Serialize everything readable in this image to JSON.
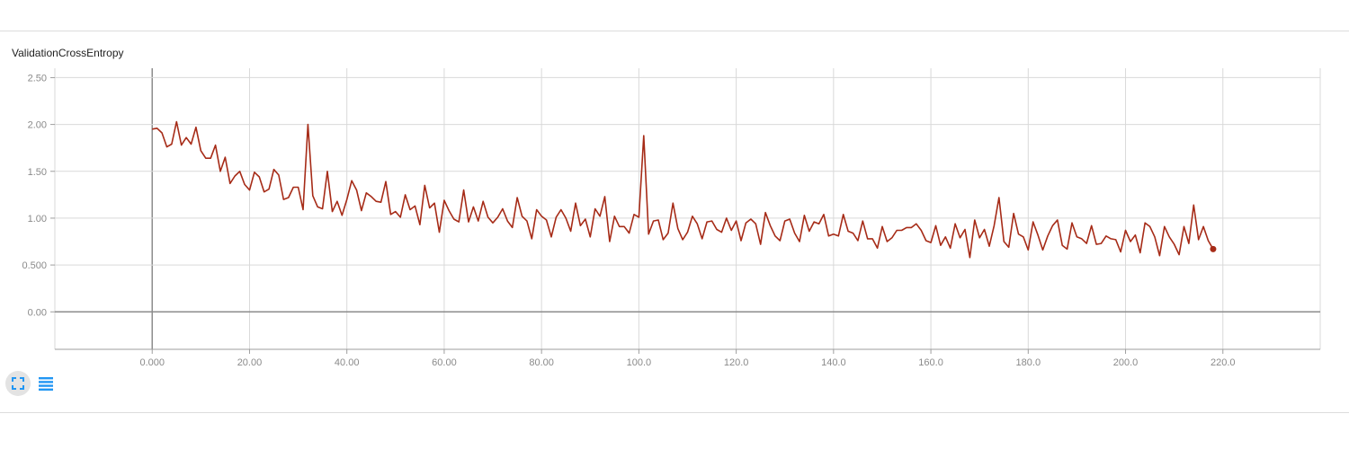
{
  "chart": {
    "title": "ValidationCrossEntropy"
  },
  "controls": {
    "expand_icon": "fullscreen-icon",
    "data_icon": "list-lines-icon",
    "accent": "#2196f3"
  },
  "colors": {
    "series": "#a62b17",
    "grid": "#d9d9d9",
    "axis": "#9e9e9e",
    "zero_line": "#8c8c8c"
  },
  "chart_data": {
    "type": "line",
    "title": "ValidationCrossEntropy",
    "xlabel": "",
    "ylabel": "",
    "xlim": [
      -20,
      240
    ],
    "ylim": [
      -0.4,
      2.6
    ],
    "x_ticks": [
      0,
      20,
      40,
      60,
      80,
      100,
      120,
      140,
      160,
      180,
      200,
      220
    ],
    "x_tick_labels": [
      "0.000",
      "20.00",
      "40.00",
      "60.00",
      "80.00",
      "100.0",
      "120.0",
      "140.0",
      "160.0",
      "180.0",
      "200.0",
      "220.0"
    ],
    "y_ticks": [
      0,
      0.5,
      1.0,
      1.5,
      2.0,
      2.5
    ],
    "y_tick_labels": [
      "0.00",
      "0.500",
      "1.00",
      "1.50",
      "2.00",
      "2.50"
    ],
    "grid": true,
    "series": [
      {
        "x": [
          0,
          1,
          2,
          3,
          4,
          5,
          6,
          7,
          8,
          9,
          10,
          11,
          12,
          13,
          14,
          15,
          16,
          17,
          18,
          19,
          20,
          21,
          22,
          23,
          24,
          25,
          26,
          27,
          28,
          29,
          30,
          31,
          32,
          33,
          34,
          35,
          36,
          37,
          38,
          39,
          40,
          41,
          42,
          43,
          44,
          45,
          46,
          47,
          48,
          49,
          50,
          51,
          52,
          53,
          54,
          55,
          56,
          57,
          58,
          59,
          60,
          61,
          62,
          63,
          64,
          65,
          66,
          67,
          68,
          69,
          70,
          71,
          72,
          73,
          74,
          75,
          76,
          77,
          78,
          79,
          80,
          81,
          82,
          83,
          84,
          85,
          86,
          87,
          88,
          89,
          90,
          91,
          92,
          93,
          94,
          95,
          96,
          97,
          98,
          99,
          100,
          101,
          102,
          103,
          104,
          105,
          106,
          107,
          108,
          109,
          110,
          111,
          112,
          113,
          114,
          115,
          116,
          117,
          118,
          119,
          120,
          121,
          122,
          123,
          124,
          125,
          126,
          127,
          128,
          129,
          130,
          131,
          132,
          133,
          134,
          135,
          136,
          137,
          138,
          139,
          140,
          141,
          142,
          143,
          144,
          145,
          146,
          147,
          148,
          149,
          150,
          151,
          152,
          153,
          154,
          155,
          156,
          157,
          158,
          159,
          160,
          161,
          162,
          163,
          164,
          165,
          166,
          167,
          168,
          169,
          170,
          171,
          172,
          173,
          174,
          175,
          176,
          177,
          178,
          179,
          180,
          181,
          182,
          183,
          184,
          185,
          186,
          187,
          188,
          189,
          190,
          191,
          192,
          193,
          194,
          195,
          196,
          197,
          198,
          199,
          200,
          201,
          202,
          203,
          204,
          205,
          206,
          207,
          208,
          209,
          210,
          211,
          212,
          213,
          214,
          215,
          216,
          217,
          218
        ],
        "y": [
          1.95,
          1.96,
          1.91,
          1.76,
          1.79,
          2.03,
          1.78,
          1.86,
          1.79,
          1.97,
          1.72,
          1.64,
          1.64,
          1.78,
          1.5,
          1.65,
          1.37,
          1.45,
          1.5,
          1.36,
          1.3,
          1.49,
          1.44,
          1.28,
          1.31,
          1.52,
          1.46,
          1.2,
          1.22,
          1.33,
          1.33,
          1.09,
          2.0,
          1.24,
          1.12,
          1.1,
          1.5,
          1.07,
          1.18,
          1.03,
          1.2,
          1.4,
          1.3,
          1.08,
          1.27,
          1.23,
          1.18,
          1.17,
          1.39,
          1.04,
          1.07,
          1.01,
          1.25,
          1.09,
          1.13,
          0.93,
          1.35,
          1.11,
          1.16,
          0.85,
          1.19,
          1.08,
          0.99,
          0.96,
          1.3,
          0.96,
          1.12,
          0.97,
          1.18,
          1.01,
          0.95,
          1.01,
          1.1,
          0.97,
          0.9,
          1.22,
          1.02,
          0.97,
          0.78,
          1.09,
          1.02,
          0.98,
          0.8,
          1.01,
          1.09,
          1.0,
          0.86,
          1.16,
          0.92,
          0.99,
          0.8,
          1.1,
          1.02,
          1.23,
          0.75,
          1.02,
          0.91,
          0.91,
          0.84,
          1.04,
          1.01,
          1.88,
          0.83,
          0.97,
          0.98,
          0.77,
          0.84,
          1.16,
          0.89,
          0.77,
          0.85,
          1.02,
          0.94,
          0.78,
          0.96,
          0.97,
          0.88,
          0.85,
          1.0,
          0.87,
          0.97,
          0.76,
          0.95,
          0.99,
          0.94,
          0.72,
          1.06,
          0.92,
          0.81,
          0.76,
          0.97,
          0.99,
          0.84,
          0.75,
          1.03,
          0.86,
          0.96,
          0.94,
          1.04,
          0.81,
          0.83,
          0.81,
          1.04,
          0.86,
          0.84,
          0.76,
          0.97,
          0.78,
          0.78,
          0.68,
          0.91,
          0.75,
          0.79,
          0.87,
          0.87,
          0.9,
          0.9,
          0.94,
          0.87,
          0.76,
          0.74,
          0.92,
          0.71,
          0.8,
          0.68,
          0.94,
          0.79,
          0.88,
          0.58,
          0.98,
          0.79,
          0.88,
          0.7,
          0.92,
          1.22,
          0.75,
          0.69,
          1.05,
          0.83,
          0.8,
          0.66,
          0.96,
          0.82,
          0.66,
          0.81,
          0.92,
          0.98,
          0.71,
          0.67,
          0.95,
          0.8,
          0.78,
          0.73,
          0.92,
          0.72,
          0.73,
          0.81,
          0.78,
          0.77,
          0.64,
          0.87,
          0.75,
          0.82,
          0.63,
          0.95,
          0.91,
          0.8,
          0.6,
          0.91,
          0.8,
          0.72,
          0.61,
          0.91,
          0.73,
          1.14,
          0.77,
          0.91,
          0.76,
          0.67
        ]
      }
    ]
  }
}
